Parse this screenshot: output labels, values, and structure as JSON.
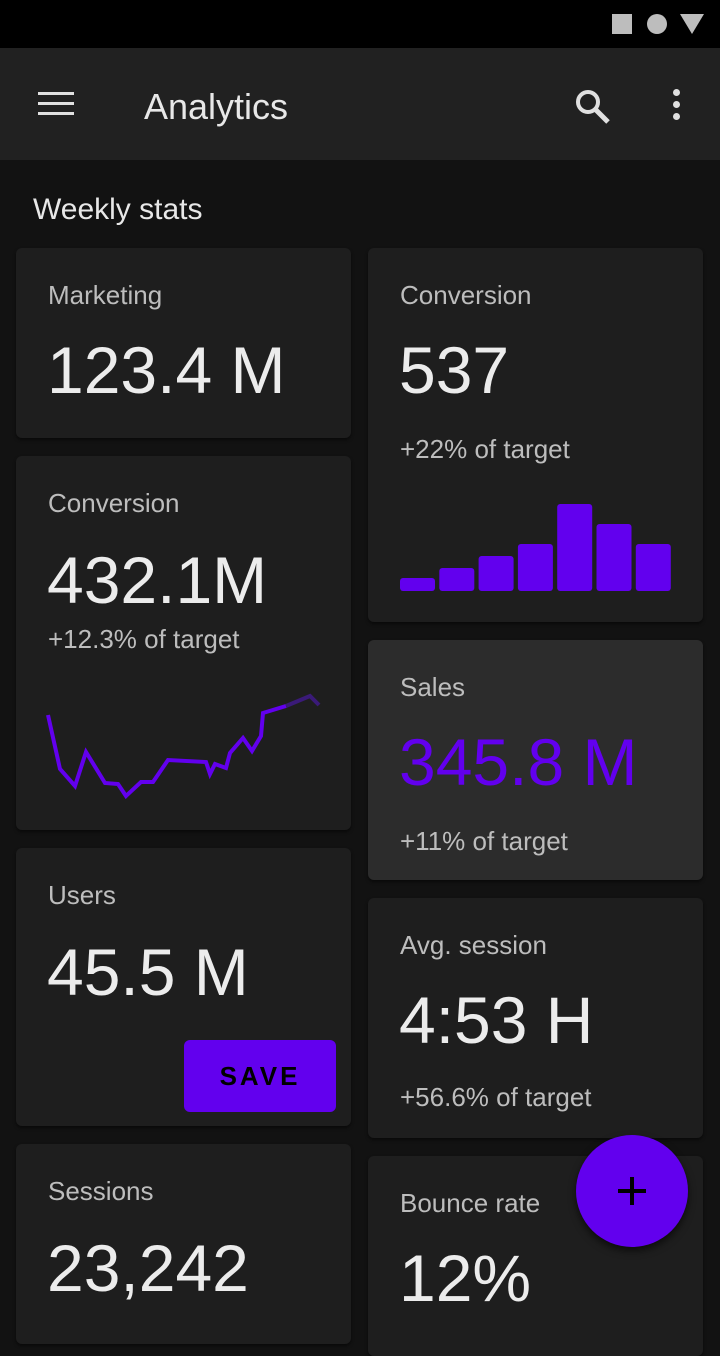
{
  "appbar": {
    "title": "Analytics"
  },
  "section_title": "Weekly stats",
  "cards": {
    "marketing": {
      "label": "Marketing",
      "value": "123.4 M"
    },
    "conversion_line": {
      "label": "Conversion",
      "value": "432.1M",
      "sub": "+12.3% of target"
    },
    "users": {
      "label": "Users",
      "value": "45.5 M",
      "button": "SAVE"
    },
    "sessions": {
      "label": "Sessions",
      "value": "23,242"
    },
    "conversion_bar": {
      "label": "Conversion",
      "value": "537",
      "sub": "+22% of target"
    },
    "sales": {
      "label": "Sales",
      "value": "345.8 M",
      "sub": "+11% of target"
    },
    "avg_session": {
      "label": "Avg. session",
      "value": "4:53 H",
      "sub": "+56.6% of target"
    },
    "bounce": {
      "label": "Bounce rate",
      "value": "12%"
    }
  },
  "colors": {
    "accent": "#6200ee",
    "accent_faded": "#3a1a78"
  },
  "chart_data": [
    {
      "type": "line",
      "x": [
        0,
        12,
        27,
        38,
        57,
        70,
        78,
        93,
        105,
        120,
        158,
        162,
        167,
        178,
        182,
        195,
        204,
        213,
        215,
        238,
        262,
        271
      ],
      "values": [
        115,
        61,
        44,
        78,
        47,
        46,
        34,
        48,
        48,
        70,
        68,
        56,
        66,
        62,
        77,
        92,
        79,
        94,
        117,
        124,
        134,
        125
      ],
      "faded_from_index": 19
    },
    {
      "type": "bar",
      "values": [
        13,
        23,
        35,
        47,
        87,
        67,
        47
      ]
    }
  ]
}
